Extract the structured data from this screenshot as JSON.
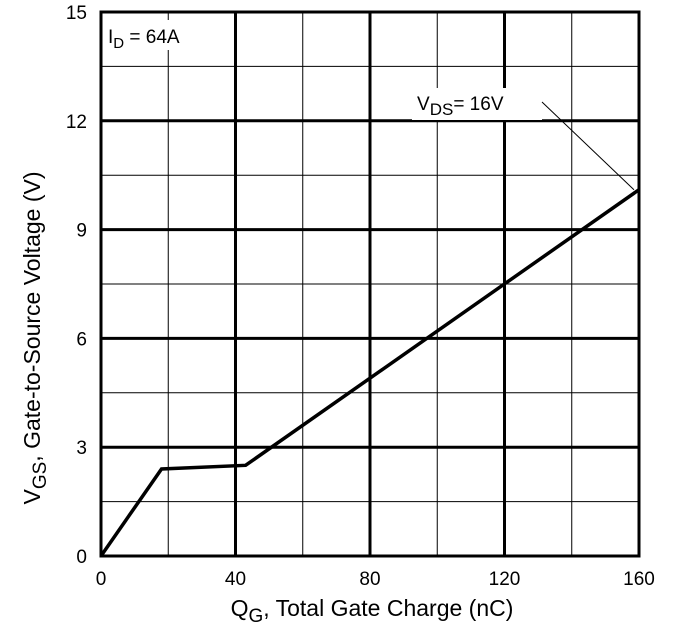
{
  "chart_data": {
    "type": "line",
    "xlabel_main": "Q",
    "xlabel_sub": "G",
    "xlabel_rest": ", Total Gate Charge (nC)",
    "ylabel_main": "V",
    "ylabel_sub": "GS",
    "ylabel_rest": ", Gate-to-Source Voltage (V)",
    "xlim": [
      0,
      160
    ],
    "ylim": [
      0,
      15
    ],
    "x_major_ticks": [
      0,
      40,
      80,
      120,
      160
    ],
    "y_major_ticks": [
      0,
      3,
      6,
      9,
      12,
      15
    ],
    "x_minor_grid": [
      20,
      60,
      100,
      140
    ],
    "y_minor_grid": [
      1.5,
      4.5,
      7.5,
      10.5,
      13.5
    ],
    "grid": true,
    "series": [
      {
        "x": [
          0,
          18,
          43,
          160
        ],
        "y": [
          0,
          2.4,
          2.5,
          10.1
        ]
      }
    ],
    "annotations": [
      {
        "id": "id",
        "main": "I",
        "sub": "D",
        "rest": " = 64A"
      },
      {
        "id": "vds",
        "main": "V",
        "sub": "DS",
        "rest": "= 16V",
        "arrow_to": [
          158.5,
          10.1
        ]
      }
    ]
  }
}
